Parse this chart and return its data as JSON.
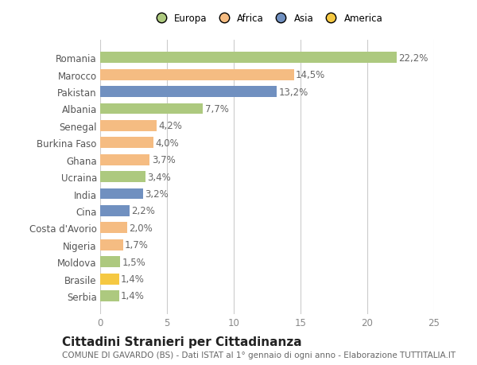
{
  "title": "Cittadini Stranieri per Cittadinanza",
  "subtitle": "COMUNE DI GAVARDO (BS) - Dati ISTAT al 1° gennaio di ogni anno - Elaborazione TUTTITALIA.IT",
  "countries": [
    "Romania",
    "Marocco",
    "Pakistan",
    "Albania",
    "Senegal",
    "Burkina Faso",
    "Ghana",
    "Ucraina",
    "India",
    "Cina",
    "Costa d'Avorio",
    "Nigeria",
    "Moldova",
    "Brasile",
    "Serbia"
  ],
  "values": [
    22.2,
    14.5,
    13.2,
    7.7,
    4.2,
    4.0,
    3.7,
    3.4,
    3.2,
    2.2,
    2.0,
    1.7,
    1.5,
    1.4,
    1.4
  ],
  "continents": [
    "Europa",
    "Africa",
    "Asia",
    "Europa",
    "Africa",
    "Africa",
    "Africa",
    "Europa",
    "Asia",
    "Asia",
    "Africa",
    "Africa",
    "Europa",
    "America",
    "Europa"
  ],
  "colors": {
    "Europa": "#adc97f",
    "Africa": "#f5bc82",
    "Asia": "#7090c0",
    "America": "#f5c842"
  },
  "legend_order": [
    "Europa",
    "Africa",
    "Asia",
    "America"
  ],
  "xlim": [
    0,
    25
  ],
  "xticks": [
    0,
    5,
    10,
    15,
    20,
    25
  ],
  "background_color": "#ffffff",
  "label_fontsize": 8.5,
  "tick_fontsize": 8.5,
  "title_fontsize": 11,
  "subtitle_fontsize": 7.5
}
